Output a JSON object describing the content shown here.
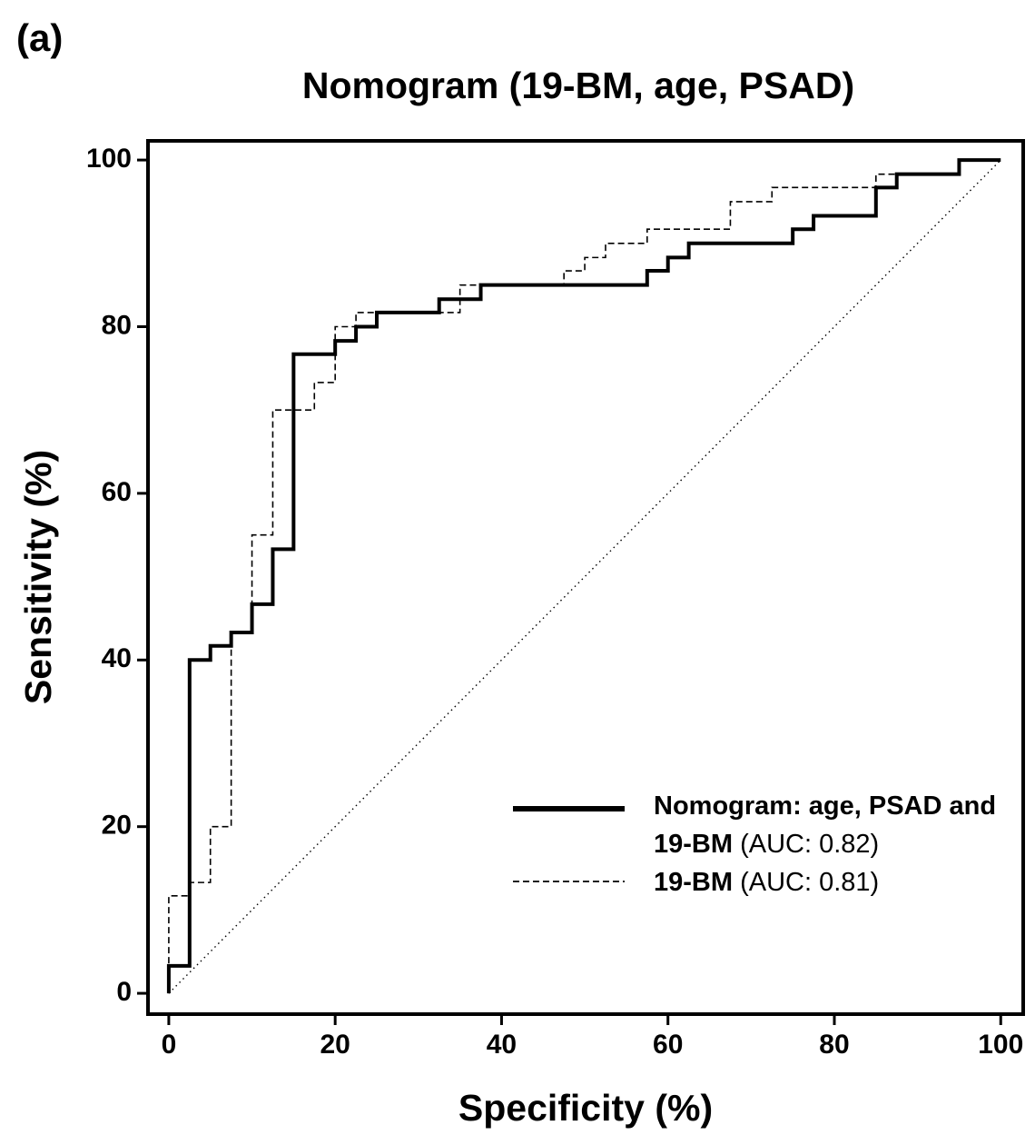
{
  "chart_data": {
    "type": "line",
    "panel_label": "(a)",
    "title": "Nomogram (19-BM, age, PSAD)",
    "x_label": "Specificity (%)",
    "y_label": "Sensitivity (%)",
    "xlim": [
      -2.5,
      102.7
    ],
    "ylim": [
      -2.5,
      102.3
    ],
    "xticks": [
      0,
      20,
      40,
      60,
      80,
      100
    ],
    "yticks": [
      0,
      20,
      40,
      60,
      80,
      100
    ],
    "series": [
      {
        "name": "Nomogram: age, PSAD and 19-BM",
        "auc_label": "(AUC: 0.82)",
        "color": "#000000",
        "style": "solid",
        "x": [
          0,
          0,
          2.5,
          2.5,
          5,
          5,
          7.5,
          7.5,
          10,
          10,
          12.5,
          12.5,
          15,
          15,
          20,
          20,
          22.5,
          22.5,
          25,
          25,
          32.5,
          32.5,
          37.5,
          37.5,
          57.5,
          57.5,
          60,
          60,
          62.5,
          62.5,
          75,
          75,
          77.5,
          77.5,
          85,
          85,
          87.5,
          87.5,
          95,
          95,
          100
        ],
        "values": [
          0,
          3.3,
          3.3,
          40,
          40,
          41.7,
          41.7,
          43.3,
          43.3,
          46.7,
          46.7,
          53.3,
          53.3,
          76.7,
          76.7,
          78.3,
          78.3,
          80,
          80,
          81.7,
          81.7,
          83.3,
          83.3,
          85,
          85,
          86.7,
          86.7,
          88.3,
          88.3,
          90,
          90,
          91.7,
          91.7,
          93.3,
          93.3,
          96.7,
          96.7,
          98.3,
          98.3,
          100,
          100
        ]
      },
      {
        "name": "19-BM",
        "auc_label": "(AUC: 0.81)",
        "color": "#000000",
        "style": "dashed",
        "x": [
          0,
          0,
          2.5,
          2.5,
          5,
          5,
          7.5,
          7.5,
          10,
          10,
          12.5,
          12.5,
          17.5,
          17.5,
          20,
          20,
          22.5,
          22.5,
          35,
          35,
          47.5,
          47.5,
          50,
          50,
          52.5,
          52.5,
          57.5,
          57.5,
          67.5,
          67.5,
          72.5,
          72.5,
          85,
          85,
          95,
          95,
          100
        ],
        "values": [
          0,
          11.7,
          11.7,
          13.3,
          13.3,
          20,
          20,
          43.3,
          43.3,
          55,
          55,
          70,
          70,
          73.3,
          73.3,
          80,
          80,
          81.7,
          81.7,
          85,
          85,
          86.7,
          86.7,
          88.3,
          88.3,
          90,
          90,
          91.7,
          91.7,
          95,
          95,
          96.7,
          96.7,
          98.3,
          98.3,
          100,
          100
        ]
      }
    ],
    "diagonal": {
      "x": [
        0,
        100
      ],
      "values": [
        0,
        100
      ]
    }
  }
}
